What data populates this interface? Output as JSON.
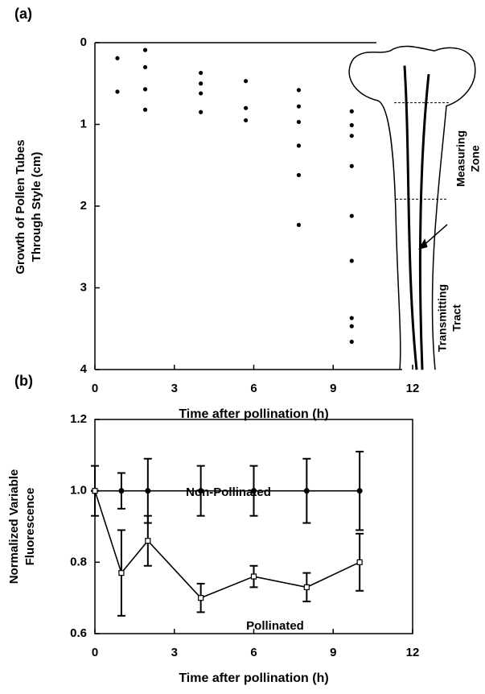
{
  "chart_data": [
    {
      "type": "scatter",
      "panel_label": "(a)",
      "ylabel": [
        "Growth of Pollen Tubes",
        "Through Style (cm)"
      ],
      "xlabel": "Time after pollination (h)",
      "x": [
        0.85,
        0.85,
        1.9,
        1.9,
        1.9,
        1.9,
        4,
        4,
        4,
        4,
        5.7,
        5.7,
        5.7,
        7.7,
        7.7,
        7.7,
        7.7,
        7.7,
        7.7,
        9.7,
        9.7,
        9.7,
        9.7,
        9.7,
        9.7,
        9.7,
        9.7,
        9.7
      ],
      "values": [
        0.19,
        0.6,
        0.09,
        0.3,
        0.57,
        0.82,
        0.37,
        0.5,
        0.62,
        0.85,
        0.47,
        0.8,
        0.95,
        0.58,
        0.78,
        0.97,
        1.26,
        1.62,
        2.23,
        0.84,
        1.01,
        1.14,
        1.51,
        2.12,
        2.67,
        3.37,
        3.47,
        3.66
      ],
      "color": "#000000",
      "xlim": [
        0,
        12
      ],
      "xticks": [
        0,
        3,
        6,
        9,
        12
      ],
      "ylim": [
        0,
        4
      ],
      "yticks": [
        0,
        1,
        2,
        3,
        4
      ],
      "y_inverted": true,
      "annotations": [
        [
          "Measuring",
          "Zone"
        ],
        [
          "Transmitting",
          "Tract"
        ]
      ]
    },
    {
      "type": "line",
      "panel_label": "(b)",
      "ylabel": [
        "Normalized Variable",
        "Fluorescence"
      ],
      "xlabel": "Time after pollination (h)",
      "x": [
        0,
        1,
        2,
        4,
        6,
        8,
        10
      ],
      "series": [
        {
          "name": "Non-Pollinated",
          "color": "#000000",
          "marker": "circle",
          "values": [
            1.0,
            1.0,
            1.0,
            1.0,
            1.0,
            1.0,
            1.0
          ],
          "errors": [
            0.07,
            0.05,
            0.09,
            0.07,
            0.07,
            0.09,
            0.11
          ]
        },
        {
          "name": "Pollinated",
          "color": "#000000",
          "marker": "square",
          "values": [
            1.0,
            0.77,
            0.86,
            0.7,
            0.76,
            0.73,
            0.8
          ],
          "errors": [
            0,
            0.12,
            0.07,
            0.04,
            0.03,
            0.04,
            0.08
          ]
        }
      ],
      "xlim": [
        0,
        12
      ],
      "xticks": [
        0,
        3,
        6,
        9,
        12
      ],
      "ylim": [
        0.6,
        1.2
      ],
      "yticks": [
        0.6,
        0.8,
        {
          "value": 1.0,
          "label": "1.0"
        },
        1.2
      ]
    }
  ]
}
